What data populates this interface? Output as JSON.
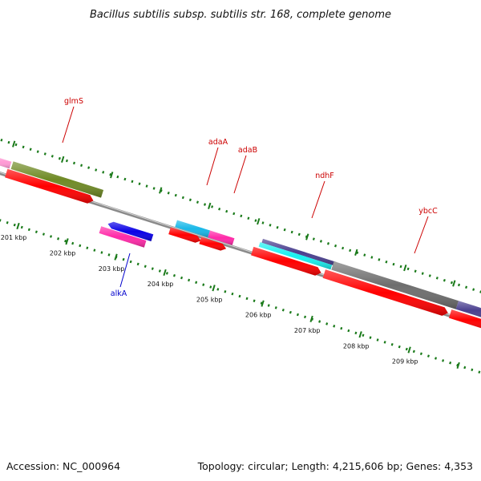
{
  "title": "Bacillus subtilis subsp. subtilis str. 168, complete genome",
  "footer": {
    "accession": "Accession: NC_000964",
    "summary": "Topology: circular; Length: 4,215,606 bp; Genes: 4,353"
  },
  "colors": {
    "label_red": "#cc0000",
    "label_blue": "#0000cc",
    "tick_green": "#1a7a1a",
    "backbone": "#8a8a8a",
    "orf_red": "#ff0000",
    "olive": "#6f8a25",
    "cyan_light": "#19b8e8",
    "magenta": "#ff2aa8",
    "blue": "#0a00e6",
    "indigo": "#4a3f8f",
    "cyan": "#19f0f0",
    "gray_gene": "#6e6e6e",
    "pink": "#ff9ad5"
  },
  "kbp_labels": [
    "201 kbp",
    "202 kbp",
    "203 kbp",
    "204 kbp",
    "205 kbp",
    "206 kbp",
    "207 kbp",
    "208 kbp",
    "209 kbp"
  ],
  "gene_labels": [
    {
      "name": "glmS",
      "color": "label_red"
    },
    {
      "name": "adaA",
      "color": "label_red"
    },
    {
      "name": "adaB",
      "color": "label_red"
    },
    {
      "name": "ndhF",
      "color": "label_red"
    },
    {
      "name": "ybcC",
      "color": "label_red"
    },
    {
      "name": "alkA",
      "color": "label_blue"
    }
  ]
}
